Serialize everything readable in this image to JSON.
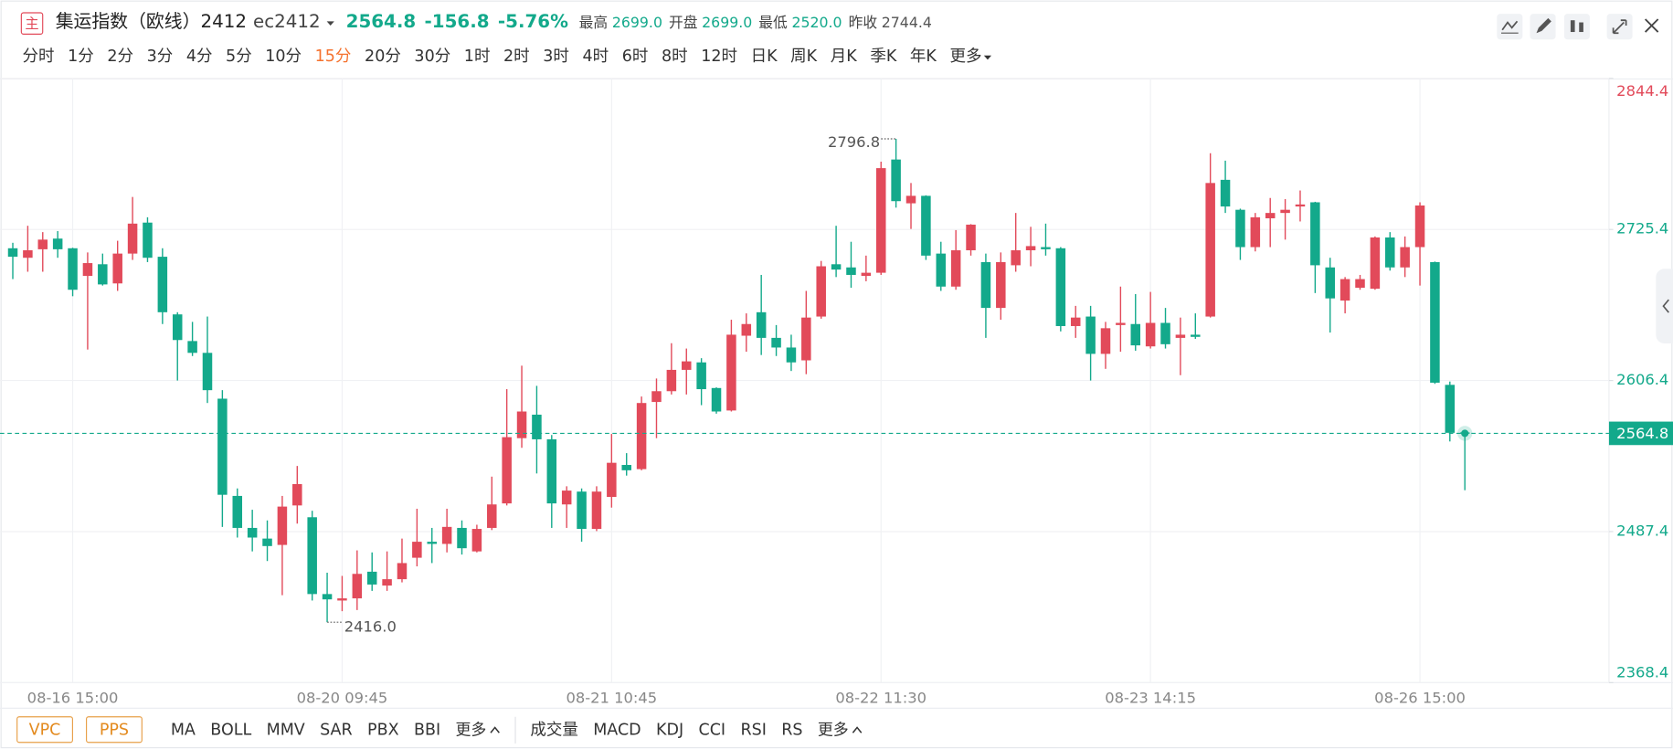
{
  "header": {
    "badge": "主",
    "name": "集运指数（欧线）2412",
    "code": "ec2412",
    "price": "2564.8",
    "change": "-156.8",
    "change_pct": "-5.76%",
    "stats": [
      {
        "label": "最高",
        "value": "2699.0"
      },
      {
        "label": "开盘",
        "value": "2699.0"
      },
      {
        "label": "最低",
        "value": "2520.0"
      },
      {
        "label": "昨收",
        "value": "2744.4"
      }
    ]
  },
  "toolbar": {
    "periods": [
      "分时",
      "1分",
      "2分",
      "3分",
      "4分",
      "5分",
      "10分",
      "15分",
      "20分",
      "30分",
      "1时",
      "2时",
      "3时",
      "4时",
      "6时",
      "8时",
      "12时",
      "日K",
      "周K",
      "月K",
      "季K",
      "年K"
    ],
    "active": "15分",
    "more": "更多"
  },
  "indicators": {
    "main": [
      "VPC",
      "PPS"
    ],
    "overlays": [
      "MA",
      "BOLL",
      "MMV",
      "SAR",
      "PBX",
      "BBI"
    ],
    "overlays_more": "更多",
    "sub": [
      "成交量",
      "MACD",
      "KDJ",
      "CCI",
      "RSI",
      "RS"
    ],
    "sub_more": "更多"
  },
  "chart_data": {
    "type": "candlestick",
    "up_color": "#e24a5a",
    "down_color": "#13a98b",
    "grid": true,
    "ylim": [
      2368.4,
      2844.4
    ],
    "yticks": [
      2368.4,
      2487.4,
      2606.4,
      2725.4,
      2844.4
    ],
    "categories": [
      null,
      null,
      null,
      null,
      "08-16 15:00",
      null,
      null,
      null,
      null,
      null,
      null,
      null,
      null,
      null,
      null,
      null,
      null,
      null,
      null,
      null,
      null,
      null,
      "08-20 09:45",
      null,
      null,
      null,
      null,
      null,
      null,
      null,
      null,
      null,
      null,
      null,
      null,
      null,
      null,
      null,
      null,
      null,
      "08-21 10:45",
      null,
      null,
      null,
      null,
      null,
      null,
      null,
      null,
      null,
      null,
      null,
      null,
      null,
      null,
      null,
      null,
      null,
      "08-22 11:30",
      null,
      null,
      null,
      null,
      null,
      null,
      null,
      null,
      null,
      null,
      null,
      null,
      null,
      null,
      null,
      null,
      null,
      "08-23 14:15",
      null,
      null,
      null,
      null,
      null,
      null,
      null,
      null,
      null,
      null,
      null,
      null,
      null,
      null,
      null,
      null,
      null,
      "08-26 15:00",
      null,
      null,
      null
    ],
    "open": [
      2710.6,
      2703.1,
      2709.8,
      2718.2,
      2710.6,
      2688.8,
      2698.0,
      2682.9,
      2706.4,
      2730.8,
      2703.9,
      2658.5,
      2637.5,
      2628.2,
      2592.1,
      2515.5,
      2490.3,
      2481.9,
      2476.9,
      2508.0,
      2498.7,
      2438.2,
      2433.1,
      2434.8,
      2455.8,
      2444.9,
      2449.9,
      2466.8,
      2479.4,
      2477.7,
      2490.3,
      2471.8,
      2490.3,
      2509.6,
      2561.0,
      2579.5,
      2560.1,
      2508.8,
      2518.9,
      2489.5,
      2514.7,
      2539.9,
      2536.6,
      2589.5,
      2598.0,
      2614.8,
      2620.7,
      2600.5,
      2582.8,
      2641.7,
      2660.2,
      2640.0,
      2632.4,
      2622.3,
      2656.8,
      2698.0,
      2695.5,
      2688.8,
      2691.3,
      2780.5,
      2746.0,
      2751.9,
      2706.4,
      2680.4,
      2709.0,
      2699.7,
      2663.6,
      2697.2,
      2709.0,
      2711.5,
      2710.6,
      2649.3,
      2656.8,
      2627.4,
      2650.1,
      2650.9,
      2633.3,
      2651.8,
      2640.0,
      2642.5,
      2656.8,
      2764.5,
      2740.9,
      2711.5,
      2734.2,
      2738.4,
      2743.5,
      2746.8,
      2695.5,
      2669.4,
      2679.5,
      2678.7,
      2719.1,
      2695.5,
      2711.5,
      2699.7,
      2603.0,
      2565.5
    ],
    "high": [
      2714.9,
      2728.3,
      2723.3,
      2724.1,
      2711.0,
      2707.3,
      2706.4,
      2716.5,
      2751.0,
      2735.0,
      2710.6,
      2660.2,
      2652.6,
      2656.8,
      2598.8,
      2521.4,
      2504.6,
      2496.2,
      2515.5,
      2539.1,
      2503.8,
      2455.0,
      2452.5,
      2472.6,
      2471.0,
      2471.8,
      2481.9,
      2505.4,
      2490.3,
      2505.4,
      2496.2,
      2492.8,
      2530.7,
      2599.6,
      2618.1,
      2602.2,
      2563.5,
      2523.1,
      2521.4,
      2523.1,
      2564.3,
      2549.2,
      2593.8,
      2608.0,
      2635.8,
      2631.6,
      2624.0,
      2601.0,
      2654.3,
      2659.3,
      2689.6,
      2650.1,
      2642.5,
      2677.0,
      2700.6,
      2728.3,
      2715.7,
      2704.8,
      2778.8,
      2796.8,
      2762.0,
      2752.3,
      2715.7,
      2724.9,
      2729.6,
      2706.4,
      2707.3,
      2738.4,
      2727.5,
      2730.0,
      2711.5,
      2665.2,
      2665.2,
      2652.6,
      2680.4,
      2674.5,
      2676.2,
      2663.6,
      2656.0,
      2659.3,
      2785.5,
      2779.6,
      2741.8,
      2738.4,
      2750.2,
      2749.3,
      2756.1,
      2747.2,
      2703.1,
      2687.9,
      2689.6,
      2719.9,
      2723.3,
      2719.9,
      2746.8,
      2700.1,
      2605.6,
      2566.0
    ],
    "low": [
      2686.3,
      2692.1,
      2692.1,
      2703.1,
      2672.8,
      2630.8,
      2681.2,
      2677.0,
      2701.4,
      2699.7,
      2650.9,
      2606.4,
      2625.7,
      2588.7,
      2491.1,
      2482.7,
      2471.8,
      2464.2,
      2437.3,
      2493.7,
      2433.1,
      2416.0,
      2424.7,
      2425.6,
      2440.7,
      2440.7,
      2447.4,
      2460.0,
      2462.6,
      2471.0,
      2469.3,
      2471.0,
      2488.6,
      2508.0,
      2553.4,
      2533.2,
      2490.3,
      2490.3,
      2479.4,
      2487.8,
      2506.3,
      2531.5,
      2535.7,
      2561.0,
      2595.4,
      2595.4,
      2587.0,
      2580.3,
      2582.0,
      2629.1,
      2626.5,
      2625.7,
      2613.9,
      2611.4,
      2655.1,
      2687.9,
      2679.5,
      2684.6,
      2689.6,
      2742.6,
      2725.8,
      2701.4,
      2677.0,
      2677.9,
      2704.8,
      2640.0,
      2654.3,
      2692.1,
      2696.4,
      2704.8,
      2645.1,
      2640.0,
      2606.4,
      2615.6,
      2629.1,
      2629.9,
      2631.6,
      2631.6,
      2610.6,
      2639.2,
      2656.0,
      2738.4,
      2701.4,
      2708.1,
      2711.5,
      2717.4,
      2731.7,
      2675.3,
      2644.2,
      2659.3,
      2677.9,
      2677.9,
      2693.0,
      2687.9,
      2681.2,
      2603.8,
      2558.4,
      2520.0
    ],
    "close": [
      2703.9,
      2709.0,
      2717.4,
      2709.8,
      2677.9,
      2698.9,
      2682.1,
      2706.4,
      2730.0,
      2703.1,
      2660.2,
      2638.3,
      2628.2,
      2598.8,
      2516.4,
      2490.3,
      2482.7,
      2476.0,
      2507.1,
      2524.8,
      2438.2,
      2434.0,
      2434.8,
      2454.1,
      2445.7,
      2449.9,
      2462.6,
      2479.4,
      2477.7,
      2491.1,
      2474.3,
      2489.5,
      2508.8,
      2561.8,
      2582.0,
      2560.1,
      2509.6,
      2519.7,
      2489.5,
      2518.9,
      2541.6,
      2535.7,
      2588.7,
      2598.0,
      2614.8,
      2621.5,
      2599.6,
      2582.0,
      2642.5,
      2650.9,
      2640.0,
      2632.4,
      2620.7,
      2656.0,
      2696.4,
      2693.8,
      2689.6,
      2691.3,
      2773.7,
      2747.7,
      2751.9,
      2704.8,
      2680.4,
      2709.0,
      2729.2,
      2663.6,
      2699.7,
      2709.0,
      2712.3,
      2709.8,
      2649.3,
      2656.0,
      2627.4,
      2647.6,
      2651.8,
      2634.1,
      2651.8,
      2635.0,
      2642.5,
      2640.8,
      2762.0,
      2743.5,
      2711.5,
      2735.0,
      2738.4,
      2740.9,
      2745.1,
      2697.2,
      2671.1,
      2686.3,
      2686.3,
      2719.1,
      2695.5,
      2711.5,
      2744.3,
      2604.7,
      2565.2,
      2564.8
    ],
    "last_price": 2564.8,
    "annotations": [
      {
        "value": 2796.8,
        "label": "2796.8"
      },
      {
        "value": 2416.0,
        "label": "2416.0"
      }
    ]
  }
}
